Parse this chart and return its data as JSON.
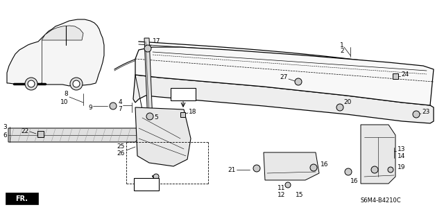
{
  "bg_color": "#ffffff",
  "diagram_code": "S6M4-B4210C",
  "fig_w": 6.4,
  "fig_h": 3.19,
  "dpi": 100
}
